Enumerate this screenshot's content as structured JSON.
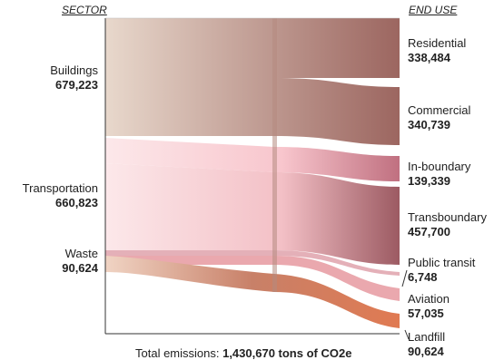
{
  "headers": {
    "sector": "SECTOR",
    "end_use": "END USE"
  },
  "sectors": [
    {
      "name": "Buildings",
      "value": "679,223"
    },
    {
      "name": "Transportation",
      "value": "660,823"
    },
    {
      "name": "Waste",
      "value": "90,624"
    }
  ],
  "end_uses": [
    {
      "name": "Residential",
      "value": "338,484"
    },
    {
      "name": "Commercial",
      "value": "340,739"
    },
    {
      "name": "In-boundary",
      "value": "139,339"
    },
    {
      "name": "Transboundary",
      "value": "457,700"
    },
    {
      "name": "Public transit",
      "value": "6,748"
    },
    {
      "name": "Aviation",
      "value": "57,035"
    },
    {
      "name": "Landfill",
      "value": "90,624"
    }
  ],
  "total": {
    "prefix": "Total emissions: ",
    "value": "1,430,670 tons of CO2e"
  },
  "colors": {
    "buildings_start": "#e8d8cc",
    "buildings_end": "#a06a62",
    "transport_start": "#fbe6e8",
    "transport_mid": "#f8c4cc",
    "transport_end": "#b86070",
    "waste_start": "#ecc8b4",
    "waste_end": "#c0604a",
    "landfill": "#dc7a56"
  }
}
